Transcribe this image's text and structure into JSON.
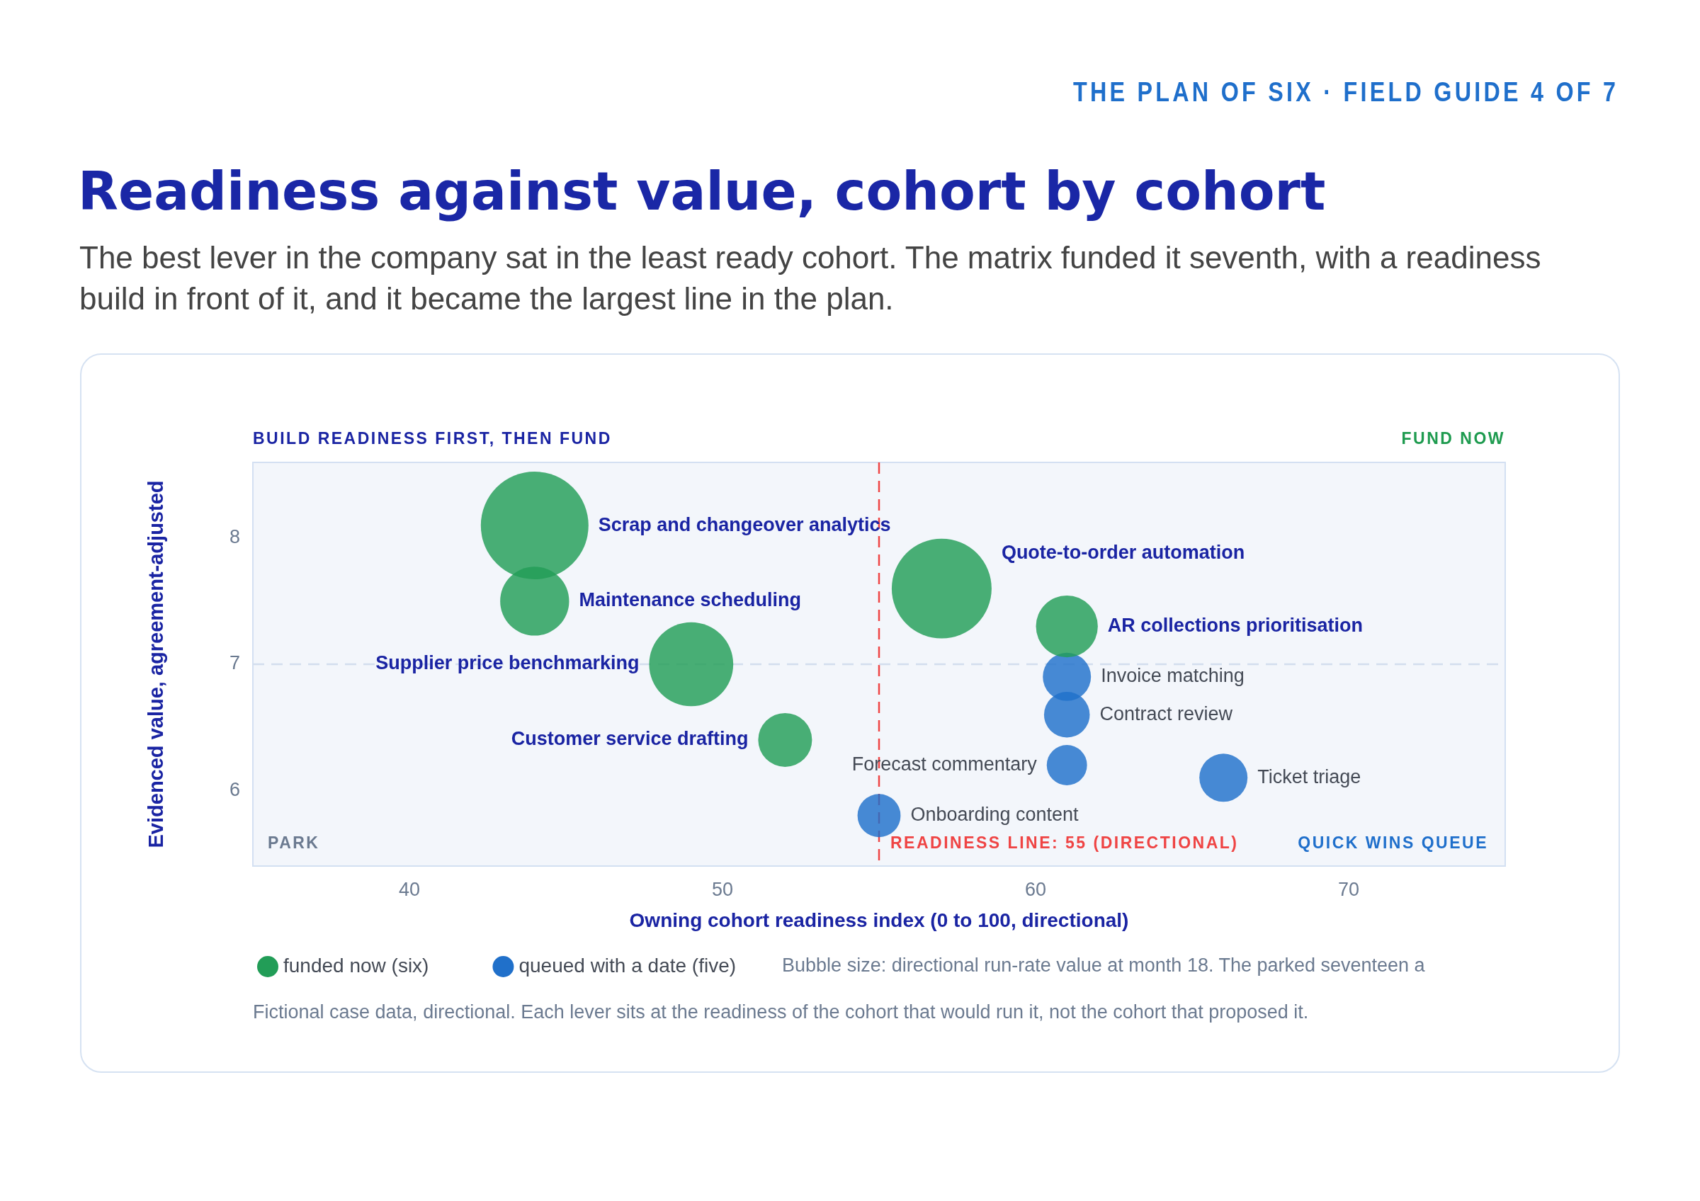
{
  "chart_data": {
    "type": "bubble",
    "title": "Readiness against value, cohort by cohort",
    "subtitle": "The best lever in the company sat in the least ready cohort. The matrix funded it seventh, with a readiness build in front of it, and it became the largest line in the plan.",
    "xlabel": "Owning cohort readiness index (0 to 100, directional)",
    "ylabel": "Evidenced value, agreement-adjusted",
    "xlim": [
      35,
      75
    ],
    "xticks": [
      40,
      50,
      60,
      70
    ],
    "ylim": [
      5.4,
      8.6
    ],
    "yticks": [
      6,
      7,
      8
    ],
    "grid": false,
    "legend": "bottom",
    "series": [
      {
        "name": "funded now (six)",
        "color": "#229d57",
        "x": [
          44,
          44,
          49,
          52,
          57,
          61
        ],
        "values": [
          8.1,
          7.5,
          7.0,
          6.4,
          7.6,
          7.3
        ],
        "sizes": [
          1,
          0.41,
          0.61,
          0.25,
          0.86,
          0.33
        ]
      },
      {
        "name": "queued with a date (five)",
        "color": "#2070ca",
        "x": [
          61,
          61,
          61,
          66,
          55
        ],
        "values": [
          6.9,
          6.6,
          6.2,
          6.1,
          5.8
        ],
        "sizes": [
          0.2,
          0.18,
          0.14,
          0.2,
          0.16
        ]
      }
    ],
    "ref_lines": [
      {
        "axis": "x",
        "value": 55,
        "label": "READINESS LINE: 55 (DIRECTIONAL)",
        "color": "#ef4444",
        "line_style": "dashed"
      },
      {
        "axis": "y",
        "value": 7,
        "color": "#d3deee",
        "line_style": "dashed"
      }
    ],
    "annotations": [
      "THE PLAN OF SIX · FIELD GUIDE 4 OF 7",
      "BUILD READINESS FIRST, THEN FUND",
      "FUND NOW",
      "PARK",
      "QUICK WINS QUEUE",
      "Scrap and changeover analytics",
      "Maintenance scheduling",
      "Supplier price benchmarking",
      "Customer service drafting",
      "Quote-to-order automation",
      "AR collections prioritisation",
      "Invoice matching",
      "Contract review",
      "Forecast commentary",
      "Ticket triage",
      "Onboarding content",
      "Bubble size: directional run-rate value at month 18. The parked seventeen a",
      "Fictional case data, directional. Each lever sits at the readiness of the cohort that would run it, not the cohort that proposed it."
    ]
  }
}
